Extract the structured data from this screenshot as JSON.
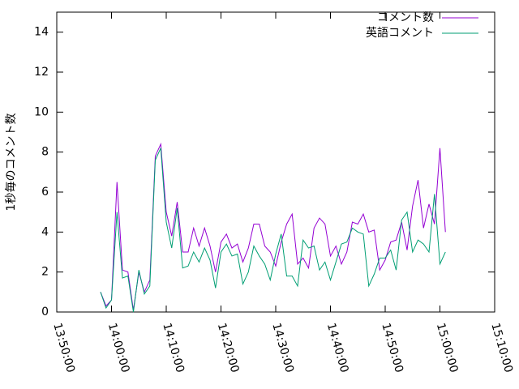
{
  "chart_data": {
    "type": "line",
    "ylabel": "1秒毎のコメント数",
    "x": [
      "13:58:00",
      "13:59:00",
      "14:00:00",
      "14:01:00",
      "14:02:00",
      "14:03:00",
      "14:04:00",
      "14:05:00",
      "14:06:00",
      "14:07:00",
      "14:08:00",
      "14:09:00",
      "14:10:00",
      "14:11:00",
      "14:12:00",
      "14:13:00",
      "14:14:00",
      "14:15:00",
      "14:16:00",
      "14:17:00",
      "14:18:00",
      "14:19:00",
      "14:20:00",
      "14:21:00",
      "14:22:00",
      "14:23:00",
      "14:24:00",
      "14:25:00",
      "14:26:00",
      "14:27:00",
      "14:28:00",
      "14:29:00",
      "14:30:00",
      "14:31:00",
      "14:32:00",
      "14:33:00",
      "14:34:00",
      "14:35:00",
      "14:36:00",
      "14:37:00",
      "14:38:00",
      "14:39:00",
      "14:40:00",
      "14:41:00",
      "14:42:00",
      "14:43:00",
      "14:44:00",
      "14:45:00",
      "14:46:00",
      "14:47:00",
      "14:48:00",
      "14:49:00",
      "14:50:00",
      "14:51:00",
      "14:52:00",
      "14:53:00",
      "14:54:00",
      "14:55:00",
      "14:56:00",
      "14:57:00",
      "14:58:00",
      "14:59:00",
      "15:00:00",
      "15:01:00"
    ],
    "series": [
      {
        "name": "コメント数",
        "color": "#9400d3",
        "values": [
          1.0,
          0.3,
          0.6,
          6.5,
          2.1,
          2.0,
          0.1,
          2.0,
          1.0,
          1.6,
          7.8,
          8.4,
          5.0,
          3.8,
          5.5,
          3.0,
          3.0,
          4.2,
          3.3,
          4.2,
          3.3,
          2.0,
          3.5,
          3.9,
          3.2,
          3.4,
          2.5,
          3.2,
          4.4,
          4.4,
          3.3,
          3.0,
          2.3,
          3.5,
          4.4,
          4.9,
          2.4,
          2.7,
          2.2,
          4.2,
          4.7,
          4.4,
          2.8,
          3.3,
          2.4,
          3.0,
          4.5,
          4.4,
          4.9,
          4.0,
          4.1,
          2.1,
          2.6,
          3.5,
          3.6,
          4.5,
          3.1,
          5.3,
          6.6,
          4.2,
          5.4,
          4.4,
          8.2,
          4.0
        ]
      },
      {
        "name": "英語コメント",
        "color": "#009e73",
        "values": [
          1.0,
          0.2,
          0.6,
          5.0,
          1.7,
          1.8,
          0.0,
          2.1,
          0.9,
          1.3,
          7.6,
          8.2,
          4.5,
          3.2,
          5.2,
          2.2,
          2.3,
          3.0,
          2.5,
          3.2,
          2.6,
          1.2,
          3.0,
          3.4,
          2.8,
          2.9,
          1.4,
          2.0,
          3.3,
          2.8,
          2.4,
          1.6,
          2.9,
          3.9,
          1.8,
          1.8,
          1.3,
          3.6,
          3.2,
          3.3,
          2.1,
          2.5,
          1.6,
          2.5,
          3.4,
          3.5,
          4.2,
          4.0,
          3.9,
          1.3,
          1.9,
          2.7,
          2.7,
          3.1,
          2.1,
          4.6,
          5.0,
          3.0,
          3.6,
          3.4,
          3.0,
          5.9,
          2.4,
          3.0
        ]
      }
    ],
    "xlim": [
      "13:50:00",
      "15:10:00"
    ],
    "xticks": [
      "13:50:00",
      "14:00:00",
      "14:10:00",
      "14:20:00",
      "14:30:00",
      "14:40:00",
      "14:50:00",
      "15:00:00",
      "15:10:00"
    ],
    "ylim": [
      0,
      15
    ],
    "yticks": [
      0,
      2,
      4,
      6,
      8,
      10,
      12,
      14
    ],
    "legend": "top-right"
  }
}
